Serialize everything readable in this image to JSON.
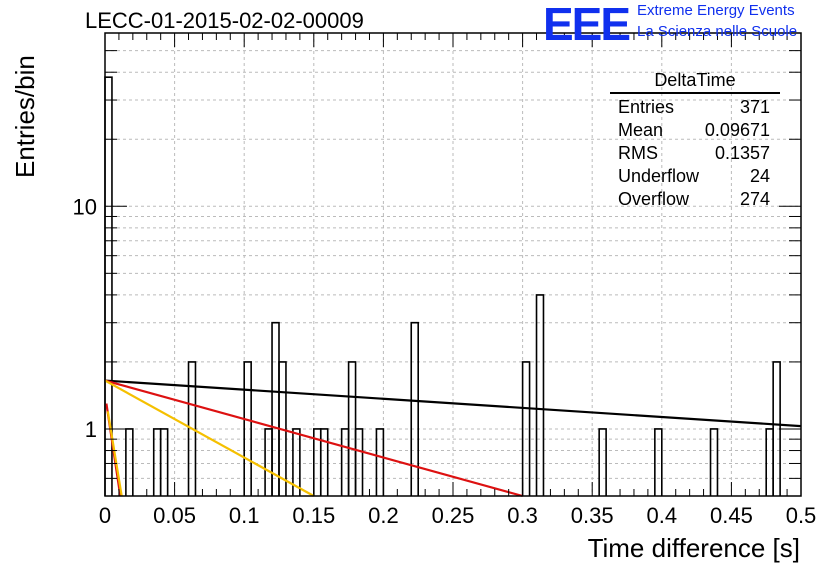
{
  "header": {
    "title": "LECC-01-2015-02-02-00009",
    "logo_text": "EEE",
    "logo_line1": "Extreme Energy Events",
    "logo_line2": "La Scienza nelle Scuole"
  },
  "stats": {
    "title": "DeltaTime",
    "rows": [
      {
        "label": "Entries",
        "value": "371"
      },
      {
        "label": "Mean",
        "value": "0.09671"
      },
      {
        "label": "RMS",
        "value": "0.1357"
      },
      {
        "label": "Underflow",
        "value": "24"
      },
      {
        "label": "Overflow",
        "value": "274"
      }
    ]
  },
  "chart_data": {
    "type": "histogram",
    "xlabel": "Time difference [s]",
    "ylabel": "Entries/bin",
    "xlim": [
      0,
      0.5
    ],
    "ylim": [
      0.5,
      60
    ],
    "log_y": true,
    "grid": true,
    "bin_width": 0.005,
    "bin_low_edges": [
      0.0,
      0.015,
      0.035,
      0.04,
      0.06,
      0.1,
      0.115,
      0.12,
      0.125,
      0.135,
      0.15,
      0.155,
      0.17,
      0.175,
      0.18,
      0.195,
      0.22,
      0.3,
      0.31,
      0.355,
      0.395,
      0.435,
      0.475,
      0.48
    ],
    "bin_counts": [
      38,
      1,
      1,
      1,
      2,
      2,
      1,
      3,
      2,
      1,
      1,
      1,
      1,
      2,
      1,
      1,
      3,
      2,
      4,
      1,
      1,
      1,
      1,
      2
    ],
    "fits": [
      {
        "color": "#000000",
        "x": [
          0.0,
          0.5
        ],
        "y": [
          1.65,
          1.03
        ]
      },
      {
        "color": "#dd1111",
        "x": [
          0.0,
          0.3
        ],
        "y": [
          1.65,
          0.5
        ]
      },
      {
        "color": "#f5c000",
        "x": [
          0.0,
          0.15
        ],
        "y": [
          1.65,
          0.5
        ]
      },
      {
        "color": "#dd1111",
        "x": [
          0.001,
          0.011
        ],
        "y": [
          1.3,
          0.5
        ]
      },
      {
        "color": "#f5c000",
        "x": [
          0.002,
          0.012
        ],
        "y": [
          1.2,
          0.5
        ]
      }
    ]
  }
}
